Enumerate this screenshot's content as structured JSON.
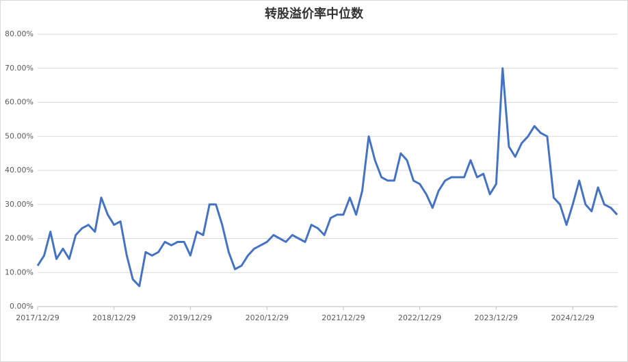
{
  "chart_data": {
    "type": "line",
    "title": "转股溢价率中位数",
    "x": [
      "2017/12/29",
      "2018/01/29",
      "2018/02/28",
      "2018/03/29",
      "2018/04/29",
      "2018/05/29",
      "2018/06/29",
      "2018/07/29",
      "2018/08/29",
      "2018/09/29",
      "2018/10/29",
      "2018/11/29",
      "2018/12/29",
      "2019/01/29",
      "2019/02/28",
      "2019/03/29",
      "2019/04/29",
      "2019/05/29",
      "2019/06/29",
      "2019/07/29",
      "2019/08/29",
      "2019/09/29",
      "2019/10/29",
      "2019/11/29",
      "2019/12/29",
      "2020/01/29",
      "2020/02/28",
      "2020/03/29",
      "2020/04/29",
      "2020/05/29",
      "2020/06/29",
      "2020/07/29",
      "2020/08/29",
      "2020/09/29",
      "2020/10/29",
      "2020/11/29",
      "2020/12/29",
      "2021/01/29",
      "2021/02/28",
      "2021/03/29",
      "2021/04/29",
      "2021/05/29",
      "2021/06/29",
      "2021/07/29",
      "2021/08/29",
      "2021/09/29",
      "2021/10/29",
      "2021/11/29",
      "2021/12/29",
      "2022/01/29",
      "2022/02/28",
      "2022/03/29",
      "2022/04/29",
      "2022/05/29",
      "2022/06/29",
      "2022/07/29",
      "2022/08/29",
      "2022/09/29",
      "2022/10/29",
      "2022/11/29",
      "2022/12/29",
      "2023/01/29",
      "2023/02/28",
      "2023/03/29",
      "2023/04/29",
      "2023/05/29",
      "2023/06/29",
      "2023/07/29",
      "2023/08/29",
      "2023/09/29",
      "2023/10/29",
      "2023/11/29",
      "2023/12/29",
      "2024/01/29",
      "2024/02/28",
      "2024/03/29",
      "2024/04/29",
      "2024/05/29",
      "2024/06/29",
      "2024/07/29",
      "2024/08/29",
      "2024/09/29",
      "2024/10/29",
      "2024/11/29",
      "2024/12/29",
      "2025/01/29",
      "2025/02/28",
      "2025/03/29",
      "2025/04/29",
      "2025/05/29",
      "2025/06/29",
      "2025/07/29"
    ],
    "series": [
      {
        "name": "转股溢价率中位数",
        "color": "#4472c4",
        "values": [
          12,
          15,
          22,
          14,
          17,
          14,
          21,
          23,
          24,
          22,
          32,
          27,
          24,
          25,
          15,
          8,
          6,
          16,
          15,
          16,
          19,
          18,
          19,
          19,
          15,
          22,
          21,
          30,
          30,
          24,
          16,
          11,
          12,
          15,
          17,
          18,
          19,
          21,
          20,
          19,
          21,
          20,
          19,
          24,
          23,
          21,
          26,
          27,
          27,
          32,
          27,
          34,
          50,
          43,
          38,
          37,
          37,
          45,
          43,
          37,
          36,
          33,
          29,
          34,
          37,
          38,
          38,
          38,
          43,
          38,
          39,
          33,
          36,
          70,
          47,
          44,
          48,
          50,
          53,
          51,
          50,
          32,
          30,
          24,
          30,
          37,
          30,
          28,
          35,
          30,
          29,
          27
        ]
      }
    ],
    "xlim": [
      "2017/12/29",
      "2025/08/01"
    ],
    "xticks": [
      "2017/12/29",
      "2018/12/29",
      "2019/12/29",
      "2020/12/29",
      "2021/12/29",
      "2022/12/29",
      "2023/12/29",
      "2024/12/29"
    ],
    "ylim": [
      0,
      80
    ],
    "yticks": [
      {
        "value": 0,
        "label": "0.00%"
      },
      {
        "value": 10,
        "label": "10.00%"
      },
      {
        "value": 20,
        "label": "20.00%"
      },
      {
        "value": 30,
        "label": "30.00%"
      },
      {
        "value": 40,
        "label": "40.00%"
      },
      {
        "value": 50,
        "label": "50.00%"
      },
      {
        "value": 60,
        "label": "60.00%"
      },
      {
        "value": 70,
        "label": "70.00%"
      },
      {
        "value": 80,
        "label": "80.00%"
      }
    ],
    "grid": true
  }
}
